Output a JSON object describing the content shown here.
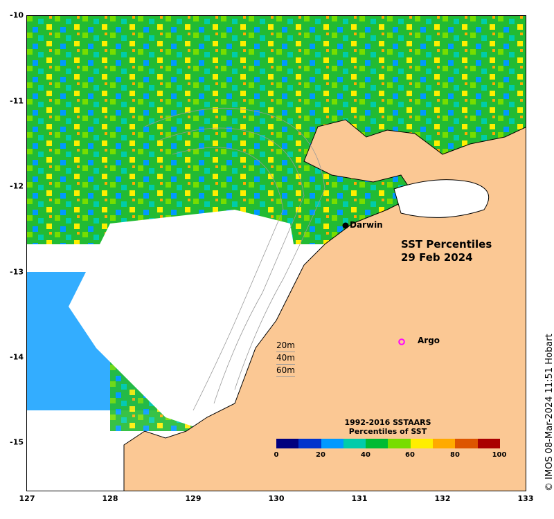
{
  "map": {
    "lon_range": [
      127,
      133
    ],
    "lat_range": [
      -15.6,
      -10
    ],
    "x_ticks": [
      "127",
      "128",
      "129",
      "130",
      "131",
      "132",
      "133"
    ],
    "y_ticks": [
      "-10",
      "-11",
      "-12",
      "-13",
      "-14",
      "-15"
    ],
    "title_line1": "SST Percentiles",
    "title_line2": "29 Feb 2024",
    "places": [
      {
        "name": "Darwin",
        "lon": 130.84,
        "lat": -12.44,
        "marker": "filled-dot"
      },
      {
        "name": "Argo",
        "lon": 131.5,
        "lat": -13.81,
        "marker": "magenta-ring"
      }
    ],
    "depth_legend": [
      "20m",
      "40m",
      "60m"
    ],
    "credit": "© IMOS 08-Mar-2024 11:51 Hobart",
    "land_color": "#fbc894",
    "no_data_color": "#ffffff"
  },
  "colorbar": {
    "title_line1": "1992-2016 SSTAARS",
    "title_line2": "Percentiles of SST",
    "ticks": [
      "0",
      "20",
      "40",
      "60",
      "80",
      "100"
    ],
    "colors": [
      "#00007f",
      "#0033cc",
      "#0099ff",
      "#00ccaa",
      "#00bb33",
      "#77dd00",
      "#ffee00",
      "#ffaa00",
      "#dd5500",
      "#aa0000"
    ]
  }
}
